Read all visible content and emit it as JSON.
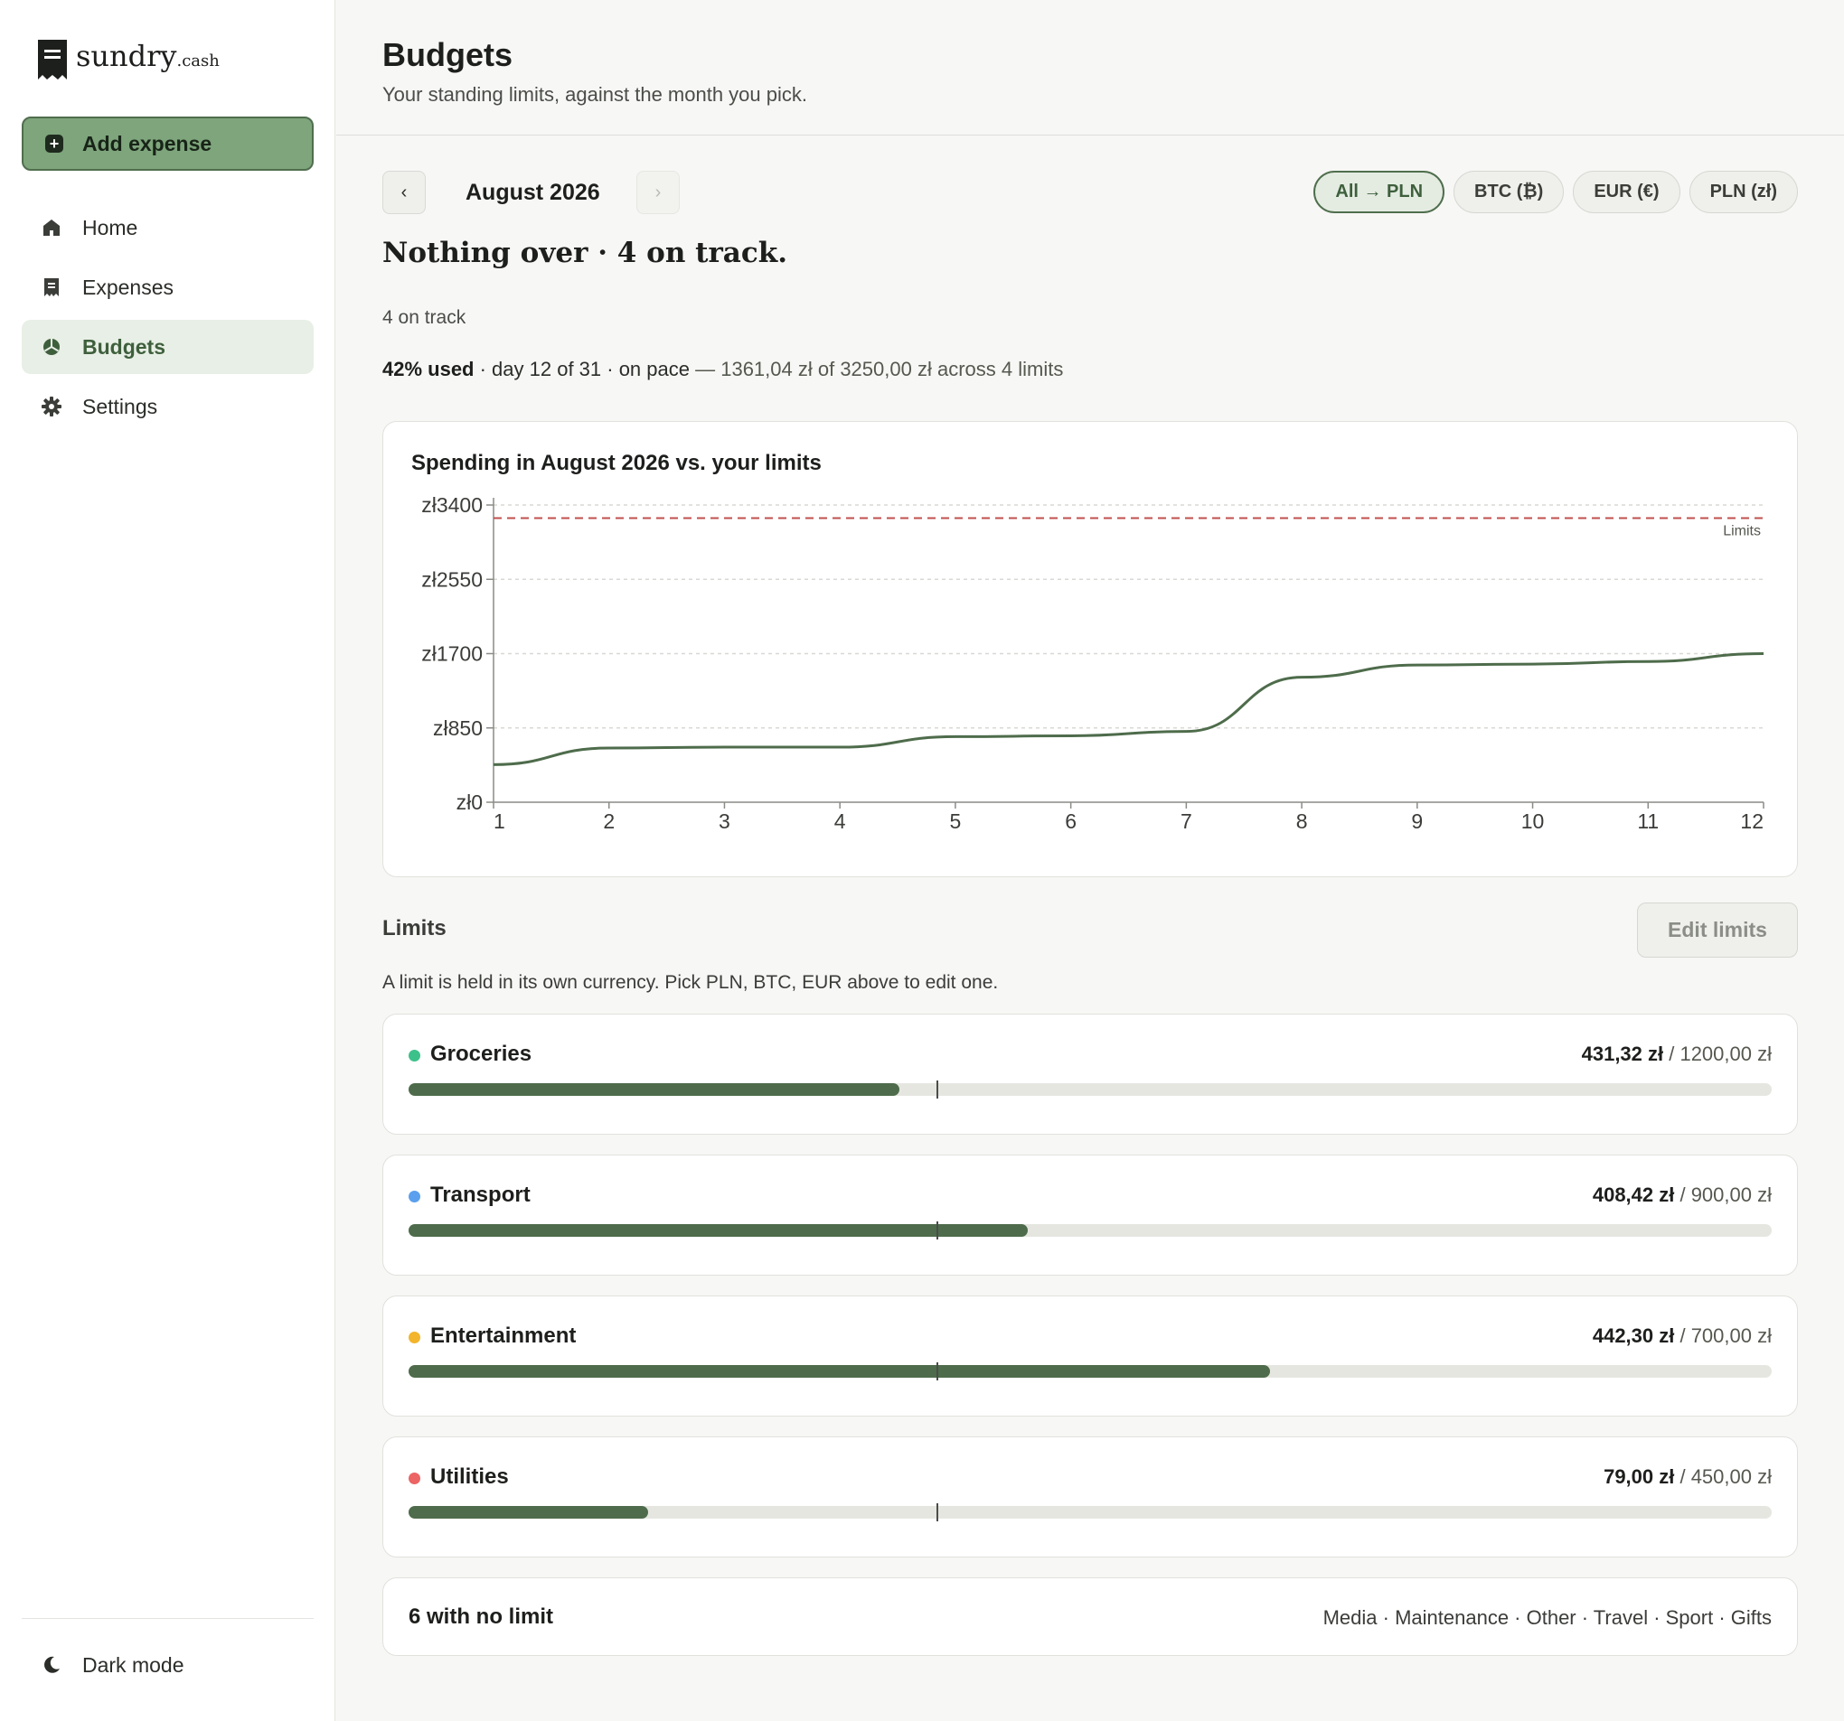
{
  "app": {
    "logo_name": "sundry",
    "logo_tld": ".cash"
  },
  "sidebar": {
    "add_label": "Add expense",
    "items": [
      {
        "label": "Home",
        "icon": "home-icon"
      },
      {
        "label": "Expenses",
        "icon": "receipt-icon"
      },
      {
        "label": "Budgets",
        "icon": "pie-chart-icon",
        "active": true
      },
      {
        "label": "Settings",
        "icon": "gear-icon"
      }
    ],
    "dark_mode_label": "Dark mode"
  },
  "header": {
    "title": "Budgets",
    "subtitle": "Your standing limits, against the month you pick."
  },
  "month": {
    "label": "August 2026",
    "prev_icon": "chevron-left-icon",
    "next_icon": "chevron-right-icon"
  },
  "currency_pills": [
    "All → PLN",
    "BTC (₿)",
    "EUR (€)",
    "PLN (zł)"
  ],
  "summary": {
    "headline": "Nothing over · 4 on track.",
    "on_track": "4 on track",
    "used_pct": "42% used",
    "pace": " · day 12 of 31 · on pace",
    "detail": " — 1361,04 zł of 3250,00 zł across 4 limits"
  },
  "chart_data": {
    "type": "line",
    "title": "Spending in August 2026 vs. your limits",
    "x": [
      1,
      2,
      3,
      4,
      5,
      6,
      7,
      8,
      9,
      10,
      11,
      12
    ],
    "series": [
      {
        "values": [
          430,
          620,
          630,
          630,
          750,
          760,
          810,
          1430,
          1570,
          1580,
          1610,
          1700
        ]
      }
    ],
    "limit": {
      "label": "Limits",
      "value": 3250
    },
    "y_ticks": [
      "zł0",
      "zł850",
      "zł1700",
      "zł2550",
      "zł3400"
    ],
    "y_tick_values": [
      0,
      850,
      1700,
      2550,
      3400
    ],
    "ylim": [
      0,
      3400
    ],
    "xlim": [
      1,
      12
    ],
    "grid": true,
    "colors": {
      "line": "#4e6c4b",
      "limit": "#c0504d",
      "grid": "#d8d9d4"
    }
  },
  "limits": {
    "heading": "Limits",
    "edit_label": "Edit limits",
    "note": "A limit is held in its own currency. Pick PLN, BTC, EUR above to edit one.",
    "items": [
      {
        "name": "Groceries",
        "spent": "431,32 zł",
        "limit": " / 1200,00 zł",
        "fraction": 0.36,
        "color": "#3cc18a"
      },
      {
        "name": "Transport",
        "spent": "408,42 zł",
        "limit": " / 900,00 zł",
        "fraction": 0.454,
        "color": "#5aa0ee"
      },
      {
        "name": "Entertainment",
        "spent": "442,30 zł",
        "limit": " / 700,00 zł",
        "fraction": 0.632,
        "color": "#f2b52b"
      },
      {
        "name": "Utilities",
        "spent": "79,00 zł",
        "limit": " / 450,00 zł",
        "fraction": 0.176,
        "color": "#ec6464"
      }
    ],
    "pace_fraction": 0.387
  },
  "no_limit": {
    "title": "6 with no limit",
    "list": "Media · Maintenance · Other · Travel · Sport · Gifts"
  }
}
